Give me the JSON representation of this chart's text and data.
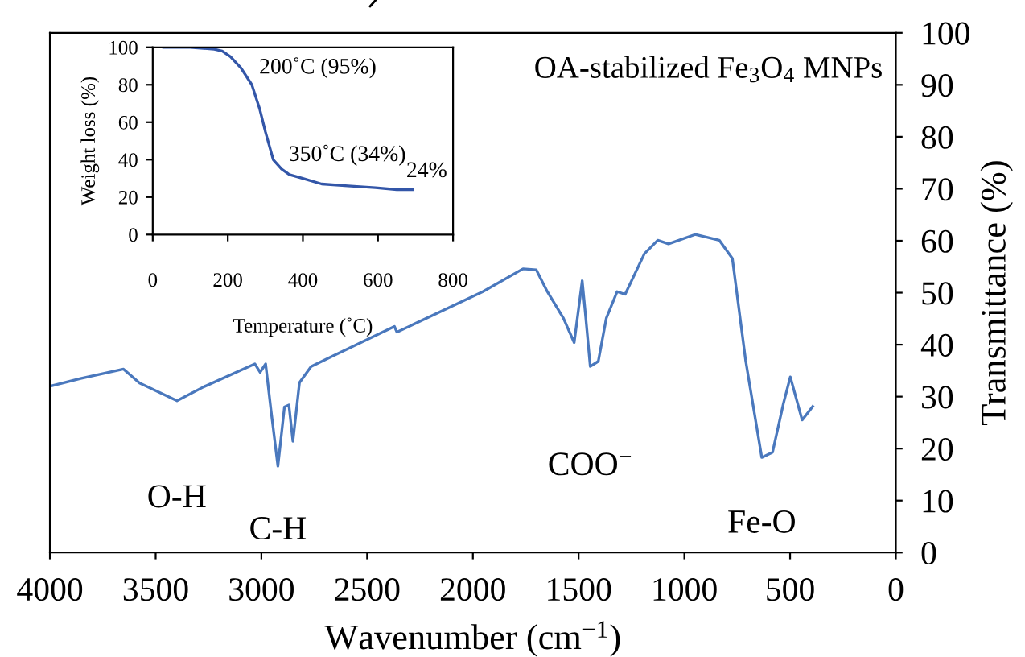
{
  "chart_data": [
    {
      "type": "line",
      "xlabel": "Wavenumber (cm$^{−1}$)",
      "ylabel": "Transmittance (%)",
      "annotations": [
        "OA-stabilized Fe$_{3}$O$_{4}$ MNPs",
        {
          "text": "O-H",
          "x": 3400,
          "y": 29.2
        },
        {
          "text": "C-H",
          "x": 2922,
          "y": 16.6
        },
        {
          "text": "COO$^{−}$",
          "x": 1445,
          "y": 35.8
        },
        {
          "text": "Fe-O",
          "x": 634,
          "y": 18.3
        }
      ],
      "series": [
        {
          "color": "#4a78bd",
          "x": [
            4000,
            3855,
            3652,
            3576,
            3399,
            3272,
            3031,
            3006,
            2980,
            2955,
            2922,
            2891,
            2870,
            2851,
            2820,
            2765,
            2663,
            2371,
            2359,
            1953,
            1763,
            1700,
            1648,
            1572,
            1521,
            1483,
            1466,
            1445,
            1407,
            1369,
            1318,
            1280,
            1189,
            1126,
            1075,
            949,
            835,
            773,
            710,
            634,
            583,
            532,
            499,
            443,
            393
          ],
          "values": [
            32.0,
            33.5,
            35.3,
            32.6,
            29.2,
            31.9,
            36.3,
            34.7,
            36.3,
            27.5,
            16.6,
            28.0,
            28.4,
            21.4,
            32.7,
            35.8,
            37.8,
            43.5,
            42.4,
            50.2,
            54.6,
            54.4,
            50.2,
            45.1,
            40.4,
            52.3,
            45.1,
            35.8,
            36.8,
            45.1,
            50.2,
            49.7,
            57.5,
            60.1,
            59.4,
            61.2,
            60.1,
            56.6,
            36.9,
            18.3,
            19.3,
            28.6,
            33.8,
            25.5,
            28.1
          ]
        }
      ],
      "xlim": [
        4000,
        0
      ],
      "xticks": [
        4000,
        3500,
        3000,
        2500,
        2000,
        1500,
        1000,
        500,
        0
      ],
      "ylim": [
        0,
        100
      ],
      "yticks": [
        0,
        10,
        20,
        30,
        40,
        50,
        60,
        70,
        80,
        90,
        100
      ],
      "grid": false,
      "legend": false
    },
    {
      "type": "line",
      "xlabel": "Temperature (˚C)",
      "ylabel": "Weight loss (%)",
      "annotations": [
        {
          "text": "200˚C (95%)",
          "x": 200,
          "y": 95
        },
        {
          "text": "350˚C (34%)",
          "x": 350,
          "y": 34
        },
        {
          "text": "24%",
          "x": 693,
          "y": 24
        }
      ],
      "series": [
        {
          "color": "#3356a8",
          "x": [
            29,
            100,
            164,
            185,
            207,
            235,
            264,
            285,
            300,
            321,
            343,
            364,
            400,
            450,
            520,
            593,
            650,
            693
          ],
          "values": [
            100,
            100,
            99,
            98,
            95,
            89,
            80,
            67,
            55,
            40,
            35,
            32,
            30,
            27,
            26,
            25,
            24,
            24
          ]
        }
      ],
      "xlim": [
        0,
        800
      ],
      "xticks": [
        0,
        200,
        400,
        600,
        800
      ],
      "ylim": [
        0,
        100
      ],
      "yticks": [
        0,
        20,
        40,
        60,
        80,
        100
      ],
      "grid": false,
      "legend": false
    }
  ]
}
